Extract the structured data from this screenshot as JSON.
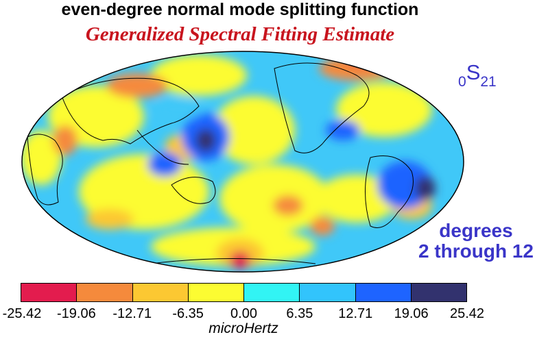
{
  "title": "even-degree normal mode splitting function",
  "subtitle": "Generalized Spectral Fitting Estimate",
  "mode": {
    "prefix": "0",
    "letter": "S",
    "suffix": "21"
  },
  "degrees_label": {
    "line1": "degrees",
    "line2": "2 through 12"
  },
  "colorbar": {
    "unit": "microHertz",
    "ticks": [
      "-25.42",
      "-19.06",
      "-12.71",
      "-6.35",
      "0.00",
      "6.35",
      "12.71",
      "19.06",
      "25.42"
    ],
    "colors": [
      "#e31c4e",
      "#f58a3c",
      "#fcc832",
      "#fcfc32",
      "#32f4f4",
      "#32c4fc",
      "#1e64ff",
      "#32326e"
    ]
  },
  "map": {
    "background_color": "#40c8f8",
    "outline_color": "#000000",
    "anomalies": [
      {
        "name": "north-pacific-dark",
        "color": "#32326e"
      },
      {
        "name": "asia-blue",
        "color": "#1e64ff"
      },
      {
        "name": "indonesia-blue",
        "color": "#1e64ff"
      },
      {
        "name": "south-america-dark",
        "color": "#32326e"
      },
      {
        "name": "antarctica-red",
        "color": "#e31c4e"
      },
      {
        "name": "arctic-red",
        "color": "#e31c4e"
      }
    ]
  }
}
